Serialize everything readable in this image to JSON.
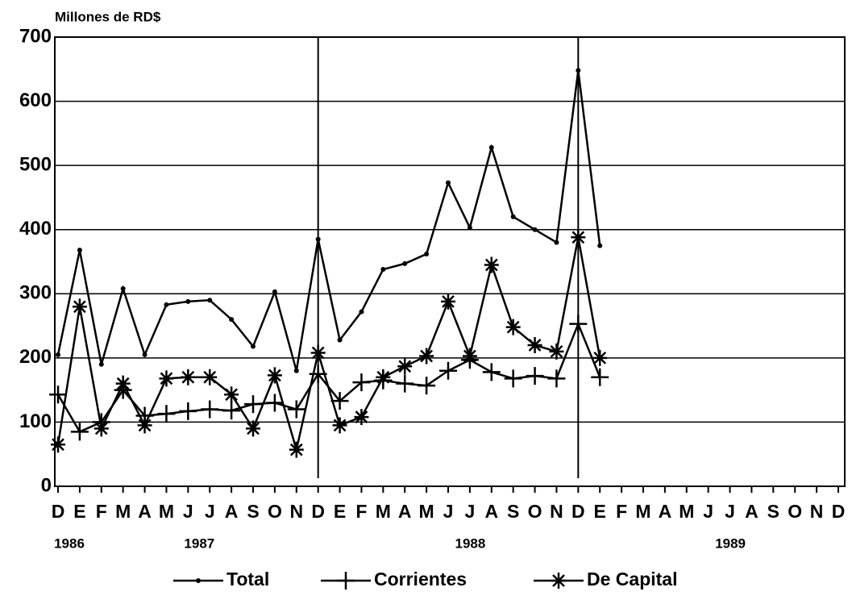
{
  "chart_data": {
    "type": "line",
    "title": "Millones de RD$",
    "categories": [
      "D",
      "E",
      "F",
      "M",
      "A",
      "M",
      "J",
      "J",
      "A",
      "S",
      "O",
      "N",
      "D",
      "E",
      "F",
      "M",
      "A",
      "M",
      "J",
      "J",
      "A",
      "S",
      "O",
      "N",
      "D",
      "E",
      "F",
      "M",
      "A",
      "M",
      "J",
      "J",
      "A",
      "S",
      "O",
      "N",
      "D"
    ],
    "years": [
      "1986",
      "1987",
      "1988",
      "1989"
    ],
    "series": [
      {
        "name": "Total",
        "marker": "dot",
        "color": "#000000",
        "values": [
          205,
          368,
          190,
          308,
          205,
          283,
          288,
          290,
          260,
          218,
          303,
          180,
          385,
          228,
          272,
          338,
          347,
          362,
          473,
          403,
          528,
          420,
          400,
          380,
          648,
          375,
          null,
          null,
          null,
          null,
          null,
          null,
          null,
          null,
          null,
          null,
          null
        ]
      },
      {
        "name": "Corrientes",
        "marker": "plus",
        "color": "#000000",
        "values": [
          143,
          85,
          100,
          150,
          110,
          113,
          117,
          120,
          118,
          128,
          130,
          120,
          175,
          133,
          162,
          165,
          160,
          157,
          180,
          197,
          178,
          168,
          172,
          168,
          253,
          170,
          null,
          null,
          null,
          null,
          null,
          null,
          null,
          null,
          null,
          null,
          null
        ]
      },
      {
        "name": "De Capital",
        "marker": "star",
        "color": "#000000",
        "values": [
          65,
          280,
          90,
          160,
          95,
          168,
          170,
          170,
          143,
          90,
          173,
          57,
          208,
          95,
          108,
          170,
          187,
          203,
          288,
          203,
          345,
          248,
          220,
          210,
          388,
          200,
          null,
          null,
          null,
          null,
          null,
          null,
          null,
          null,
          null,
          null,
          null
        ]
      }
    ],
    "ylim": [
      0,
      700
    ],
    "yticks": [
      0,
      100,
      200,
      300,
      400,
      500,
      600,
      700
    ],
    "grid": true
  }
}
